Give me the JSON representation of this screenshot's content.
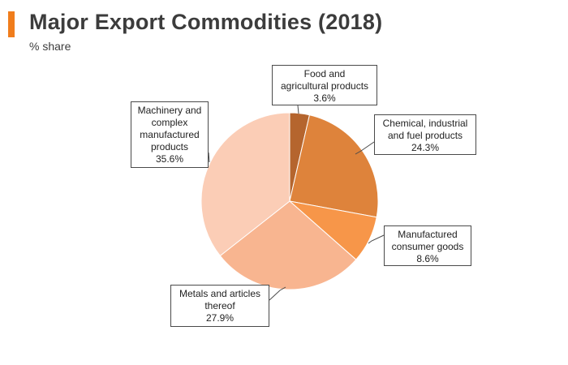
{
  "header": {
    "title": "Major Export Commodities (2018)",
    "subtitle": "% share",
    "accent_color": "#f07d1c"
  },
  "chart_data": {
    "type": "pie",
    "title": "Major Export Commodities (2018)",
    "subtitle": "% share",
    "slices": [
      {
        "label_lines": [
          "Food and",
          "agricultural products"
        ],
        "value_label": "3.6%",
        "value": 3.6,
        "color": "#b5652e"
      },
      {
        "label_lines": [
          "Chemical, industrial",
          "and fuel products"
        ],
        "value_label": "24.3%",
        "value": 24.3,
        "color": "#de833b"
      },
      {
        "label_lines": [
          "Manufactured",
          "consumer goods"
        ],
        "value_label": "8.6%",
        "value": 8.6,
        "color": "#f79649"
      },
      {
        "label_lines": [
          "Metals and articles",
          "thereof"
        ],
        "value_label": "27.9%",
        "value": 27.9,
        "color": "#f8b590"
      },
      {
        "label_lines": [
          "Machinery and",
          "complex",
          "manufactured",
          "products"
        ],
        "value_label": "35.6%",
        "value": 35.6,
        "color": "#fbcdb6"
      }
    ]
  }
}
